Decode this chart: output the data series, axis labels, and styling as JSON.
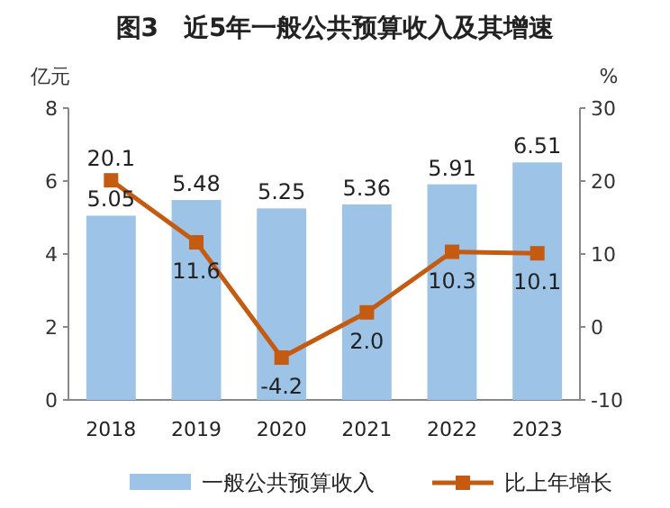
{
  "chart_data": {
    "type": "bar",
    "title": "图3　近5年一般公共预算收入及其增速",
    "ylabel": "亿元",
    "y2label": "%",
    "categories": [
      "2018",
      "2019",
      "2020",
      "2021",
      "2022",
      "2023"
    ],
    "series": [
      {
        "name": "一般公共预算收入",
        "color": "#9dc3e6",
        "values": [
          5.05,
          5.48,
          5.25,
          5.36,
          5.91,
          6.51
        ],
        "value_labels": [
          "5.05",
          "5.48",
          "5.25",
          "5.36",
          "5.91",
          "6.51"
        ]
      },
      {
        "name": "比上年增长",
        "type": "line",
        "axis": "y2",
        "color": "#c55a11",
        "marker": "square",
        "values": [
          20.1,
          11.6,
          -4.2,
          2.0,
          10.3,
          10.1
        ],
        "value_labels": [
          "20.1",
          "11.6",
          "-4.2",
          "2.0",
          "10.3",
          "10.1"
        ]
      }
    ],
    "ylim": [
      0,
      8
    ],
    "yticks": [
      0,
      2,
      4,
      6,
      8
    ],
    "y2lim": [
      -10,
      30
    ],
    "y2ticks": [
      -10,
      0,
      10,
      20,
      30
    ],
    "legend": "bottom",
    "grid": false
  }
}
